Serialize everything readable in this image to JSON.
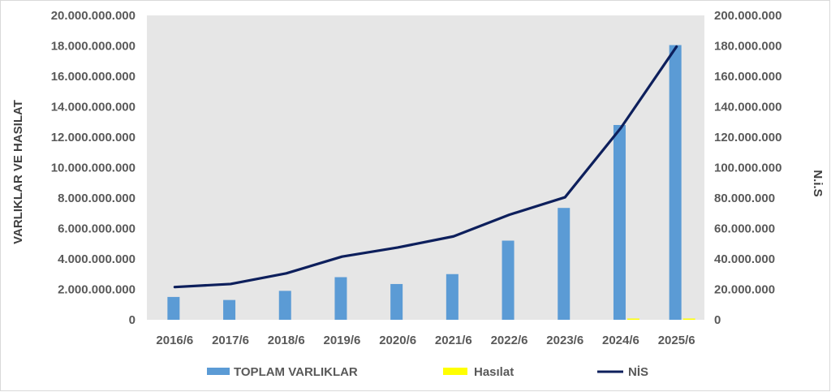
{
  "chart_data": {
    "type": "bar",
    "categories": [
      "2016/6",
      "2017/6",
      "2018/6",
      "2019/6",
      "2020/6",
      "2021/6",
      "2022/6",
      "2023/6",
      "2024/6",
      "2025/6"
    ],
    "series": [
      {
        "name": "TOPLAM VARLIKLAR",
        "type": "bar",
        "axis": "left",
        "color": "#5B9BD5",
        "values": [
          1500000000,
          1300000000,
          1900000000,
          2800000000,
          2350000000,
          3000000000,
          5200000000,
          7350000000,
          12800000000,
          18050000000
        ]
      },
      {
        "name": "Hasılat",
        "type": "bar",
        "axis": "left",
        "color": "#FFFF00",
        "values": [
          0,
          0,
          0,
          0,
          0,
          0,
          0,
          0,
          50000000,
          60000000
        ]
      },
      {
        "name": "NİS",
        "type": "line",
        "axis": "right",
        "color": "#0D1F5C",
        "values": [
          21500000,
          23500000,
          30500000,
          41500000,
          47500000,
          54800000,
          69000000,
          80500000,
          126000000,
          179500000
        ]
      }
    ],
    "ylabel": "VARLIKLAR VE HASILAT",
    "y2label": "N.i.S",
    "ylim": [
      0,
      20000000000
    ],
    "y2lim": [
      0,
      200000000
    ],
    "yticks": [
      "0",
      "2.000.000.000",
      "4.000.000.000",
      "6.000.000.000",
      "8.000.000.000",
      "10.000.000.000",
      "12.000.000.000",
      "14.000.000.000",
      "16.000.000.000",
      "18.000.000.000",
      "20.000.000.000"
    ],
    "y2ticks": [
      "0",
      "20.000.000",
      "40.000.000",
      "60.000.000",
      "80.000.000",
      "100.000.000",
      "120.000.000",
      "140.000.000",
      "160.000.000",
      "180.000.000",
      "200.000.000"
    ],
    "plot_background": "#E6E6E6",
    "grid": false,
    "legend_position": "bottom"
  }
}
